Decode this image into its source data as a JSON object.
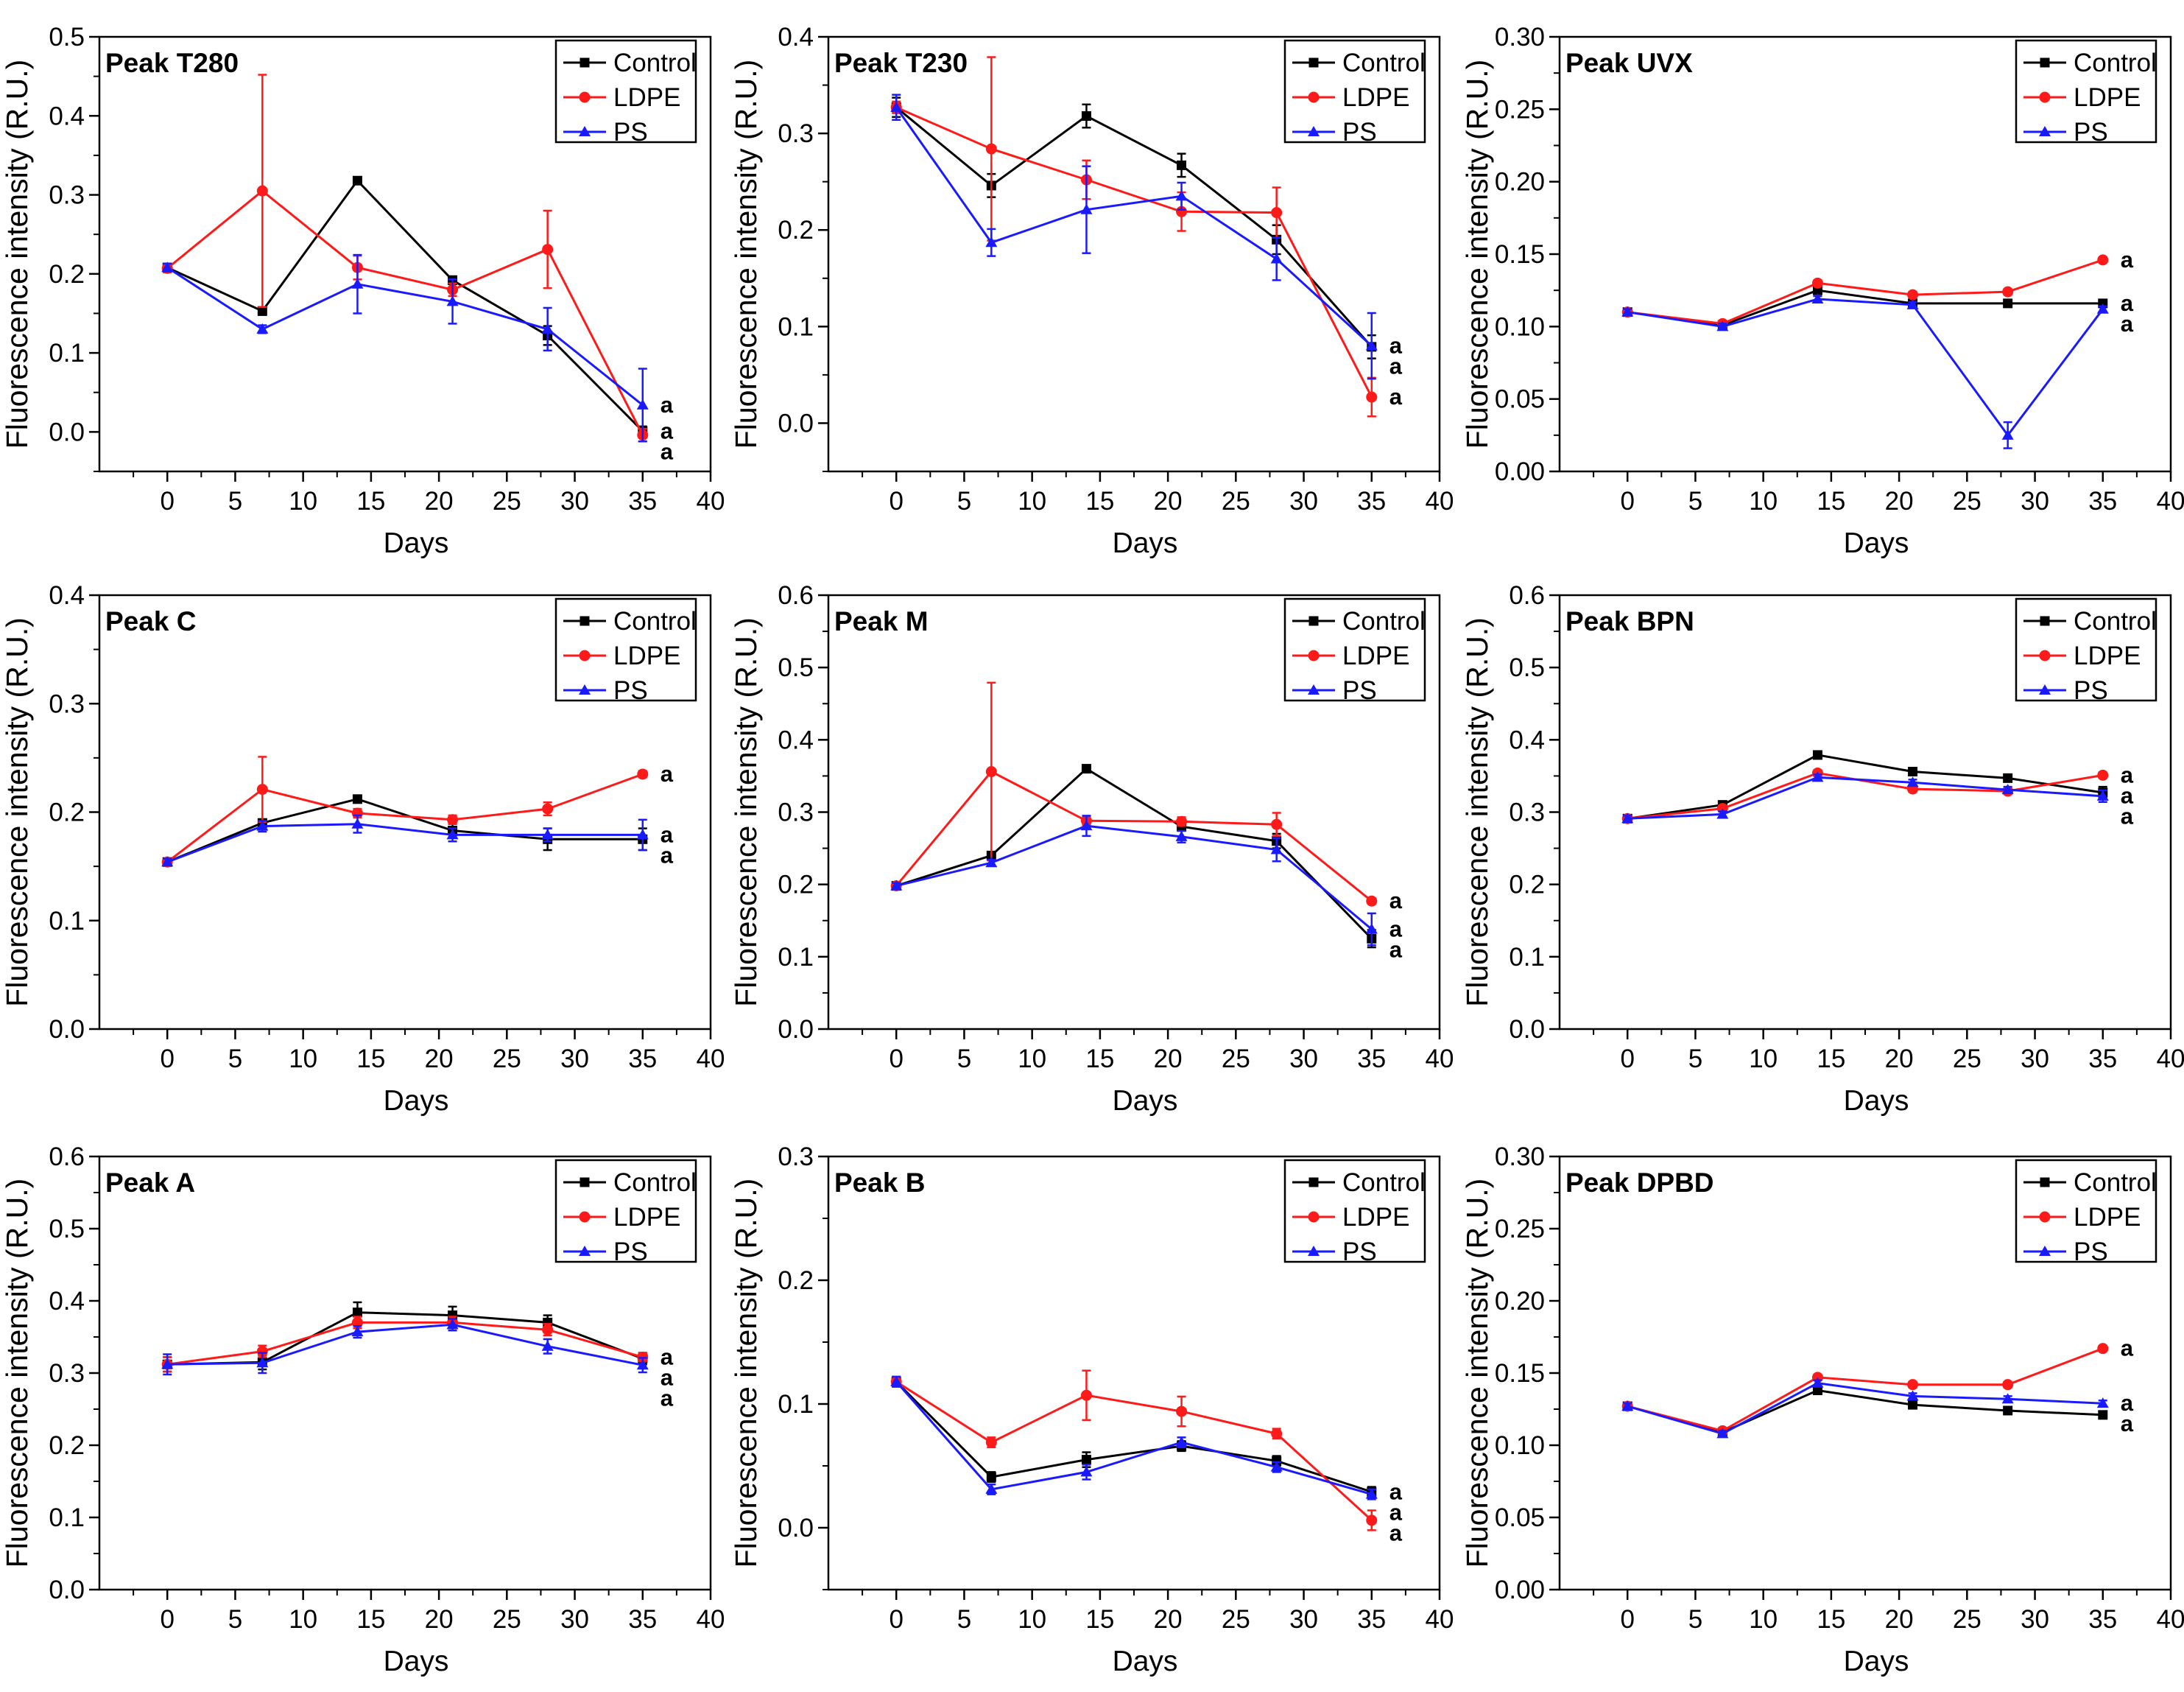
{
  "figure": {
    "xlabel": "Days",
    "ylabel": "Fluorescence intensity (R.U.)",
    "legend_labels": [
      "Control",
      "LDPE",
      "PS"
    ],
    "colors": {
      "Control": "#000000",
      "LDPE": "#ff1a1a",
      "PS": "#1a1aff"
    }
  },
  "chart_data": [
    {
      "type": "line",
      "title": "Peak T280",
      "xlabel": "Days",
      "ylabel": "Fluorescence intensity (R.U.)",
      "x": [
        0,
        7,
        14,
        21,
        28,
        35
      ],
      "xlim": [
        -5,
        40
      ],
      "xticks": [
        0,
        5,
        10,
        15,
        20,
        25,
        30,
        35,
        40
      ],
      "ylim": [
        -0.05,
        0.5
      ],
      "yticks": [
        "0.0",
        "0.1",
        "0.2",
        "0.3",
        "0.4",
        "0.5"
      ],
      "legend": "top-right",
      "series": [
        {
          "name": "Control",
          "values": [
            0.208,
            0.153,
            0.318,
            0.192,
            0.122,
            0.001
          ],
          "errors": [
            0.005,
            0.005,
            0.004,
            0.005,
            0.012,
            0.006
          ]
        },
        {
          "name": "LDPE",
          "values": [
            0.207,
            0.305,
            0.208,
            0.18,
            0.231,
            -0.004
          ],
          "errors": [
            0.005,
            0.147,
            0.015,
            0.008,
            0.049,
            0.008
          ]
        },
        {
          "name": "PS",
          "values": [
            0.208,
            0.13,
            0.187,
            0.165,
            0.13,
            0.034
          ],
          "errors": [
            0.005,
            0.005,
            0.037,
            0.028,
            0.027,
            0.046
          ]
        }
      ],
      "annotations": [
        "a",
        "a",
        "a"
      ]
    },
    {
      "type": "line",
      "title": "Peak T230",
      "xlabel": "Days",
      "ylabel": "Fluorescence intensity (R.U.)",
      "x": [
        0,
        7,
        14,
        21,
        28,
        35
      ],
      "xlim": [
        -5,
        40
      ],
      "xticks": [
        0,
        5,
        10,
        15,
        20,
        25,
        30,
        35,
        40
      ],
      "ylim": [
        -0.05,
        0.4
      ],
      "yticks": [
        "0.0",
        "0.1",
        "0.2",
        "0.3",
        "0.4"
      ],
      "legend": "top-right",
      "series": [
        {
          "name": "Control",
          "values": [
            0.327,
            0.246,
            0.318,
            0.267,
            0.19,
            0.079
          ],
          "errors": [
            0.01,
            0.012,
            0.012,
            0.012,
            0.015,
            0.012
          ]
        },
        {
          "name": "LDPE",
          "values": [
            0.327,
            0.284,
            0.252,
            0.219,
            0.218,
            0.027
          ],
          "errors": [
            0.006,
            0.095,
            0.02,
            0.02,
            0.026,
            0.02
          ]
        },
        {
          "name": "PS",
          "values": [
            0.327,
            0.187,
            0.221,
            0.235,
            0.17,
            0.08
          ],
          "errors": [
            0.013,
            0.014,
            0.045,
            0.014,
            0.022,
            0.034
          ]
        }
      ],
      "annotations": [
        "a",
        "a",
        "a"
      ]
    },
    {
      "type": "line",
      "title": "Peak UVX",
      "xlabel": "Days",
      "ylabel": "Fluorescence intensity (R.U.)",
      "x": [
        0,
        7,
        14,
        21,
        28,
        35
      ],
      "xlim": [
        -5,
        40
      ],
      "xticks": [
        0,
        5,
        10,
        15,
        20,
        25,
        30,
        35,
        40
      ],
      "ylim": [
        0.0,
        0.3
      ],
      "yticks": [
        "0.00",
        "0.05",
        "0.10",
        "0.15",
        "0.20",
        "0.25",
        "0.30"
      ],
      "legend": "top-right",
      "series": [
        {
          "name": "Control",
          "values": [
            0.11,
            0.101,
            0.125,
            0.116,
            0.116,
            0.116
          ],
          "errors": [
            0.002,
            0.002,
            0.002,
            0.002,
            0.002,
            0.002
          ]
        },
        {
          "name": "LDPE",
          "values": [
            0.11,
            0.102,
            0.13,
            0.122,
            0.124,
            0.146
          ],
          "errors": [
            0.002,
            0.002,
            0.002,
            0.002,
            0.002,
            0.002
          ]
        },
        {
          "name": "PS",
          "values": [
            0.11,
            0.1,
            0.119,
            0.115,
            0.025,
            0.112
          ],
          "errors": [
            0.002,
            0.002,
            0.002,
            0.002,
            0.009,
            0.002
          ]
        }
      ],
      "annotations": [
        "a",
        "a",
        "a"
      ]
    },
    {
      "type": "line",
      "title": "Peak C",
      "xlabel": "Days",
      "ylabel": "Fluorescence intensity (R.U.)",
      "x": [
        0,
        7,
        14,
        21,
        28,
        35
      ],
      "xlim": [
        -5,
        40
      ],
      "xticks": [
        0,
        5,
        10,
        15,
        20,
        25,
        30,
        35,
        40
      ],
      "ylim": [
        0.0,
        0.4
      ],
      "yticks": [
        "0.0",
        "0.1",
        "0.2",
        "0.3",
        "0.4"
      ],
      "legend": "top-right",
      "series": [
        {
          "name": "Control",
          "values": [
            0.154,
            0.19,
            0.212,
            0.183,
            0.175,
            0.175
          ],
          "errors": [
            0.003,
            0.003,
            0.003,
            0.006,
            0.01,
            0.01
          ]
        },
        {
          "name": "LDPE",
          "values": [
            0.154,
            0.221,
            0.199,
            0.193,
            0.203,
            0.235
          ],
          "errors": [
            0.003,
            0.03,
            0.004,
            0.004,
            0.006,
            0.003
          ]
        },
        {
          "name": "PS",
          "values": [
            0.154,
            0.187,
            0.189,
            0.179,
            0.179,
            0.179
          ],
          "errors": [
            0.003,
            0.005,
            0.008,
            0.006,
            0.006,
            0.014
          ]
        }
      ],
      "annotations": [
        "a",
        "a",
        "a"
      ]
    },
    {
      "type": "line",
      "title": "Peak M",
      "xlabel": "Days",
      "ylabel": "Fluorescence intensity (R.U.)",
      "x": [
        0,
        7,
        14,
        21,
        28,
        35
      ],
      "xlim": [
        -5,
        40
      ],
      "xticks": [
        0,
        5,
        10,
        15,
        20,
        25,
        30,
        35,
        40
      ],
      "ylim": [
        0.0,
        0.6
      ],
      "yticks": [
        "0.0",
        "0.1",
        "0.2",
        "0.3",
        "0.4",
        "0.5",
        "0.6"
      ],
      "legend": "top-right",
      "series": [
        {
          "name": "Control",
          "values": [
            0.198,
            0.24,
            0.36,
            0.28,
            0.26,
            0.125
          ],
          "errors": [
            0.004,
            0.004,
            0.004,
            0.004,
            0.01,
            0.012
          ]
        },
        {
          "name": "LDPE",
          "values": [
            0.198,
            0.356,
            0.288,
            0.287,
            0.283,
            0.177
          ],
          "errors": [
            0.004,
            0.123,
            0.006,
            0.006,
            0.016,
            0.004
          ]
        },
        {
          "name": "PS",
          "values": [
            0.198,
            0.23,
            0.281,
            0.266,
            0.248,
            0.138
          ],
          "errors": [
            0.004,
            0.004,
            0.014,
            0.008,
            0.016,
            0.022
          ]
        }
      ],
      "annotations": [
        "a",
        "a",
        "a"
      ]
    },
    {
      "type": "line",
      "title": "Peak BPN",
      "xlabel": "Days",
      "ylabel": "Fluorescence intensity (R.U.)",
      "x": [
        0,
        7,
        14,
        21,
        28,
        35
      ],
      "xlim": [
        -5,
        40
      ],
      "xticks": [
        0,
        5,
        10,
        15,
        20,
        25,
        30,
        35,
        40
      ],
      "ylim": [
        0.0,
        0.6
      ],
      "yticks": [
        "0.0",
        "0.1",
        "0.2",
        "0.3",
        "0.4",
        "0.5",
        "0.6"
      ],
      "legend": "top-right",
      "series": [
        {
          "name": "Control",
          "values": [
            0.291,
            0.31,
            0.379,
            0.356,
            0.347,
            0.327
          ],
          "errors": [
            0.004,
            0.004,
            0.004,
            0.004,
            0.004,
            0.008
          ]
        },
        {
          "name": "LDPE",
          "values": [
            0.291,
            0.305,
            0.354,
            0.332,
            0.329,
            0.351
          ],
          "errors": [
            0.004,
            0.004,
            0.004,
            0.004,
            0.004,
            0.004
          ]
        },
        {
          "name": "PS",
          "values": [
            0.291,
            0.297,
            0.348,
            0.341,
            0.331,
            0.322
          ],
          "errors": [
            0.004,
            0.004,
            0.004,
            0.004,
            0.004,
            0.008
          ]
        }
      ],
      "annotations": [
        "a",
        "a",
        "a"
      ]
    },
    {
      "type": "line",
      "title": "Peak A",
      "xlabel": "Days",
      "ylabel": "Fluorescence intensity (R.U.)",
      "x": [
        0,
        7,
        14,
        21,
        28,
        35
      ],
      "xlim": [
        -5,
        40
      ],
      "xticks": [
        0,
        5,
        10,
        15,
        20,
        25,
        30,
        35,
        40
      ],
      "ylim": [
        0.0,
        0.6
      ],
      "yticks": [
        "0.0",
        "0.1",
        "0.2",
        "0.3",
        "0.4",
        "0.5",
        "0.6"
      ],
      "legend": "top-right",
      "series": [
        {
          "name": "Control",
          "values": [
            0.312,
            0.315,
            0.384,
            0.38,
            0.37,
            0.32
          ],
          "errors": [
            0.01,
            0.01,
            0.014,
            0.012,
            0.01,
            0.008
          ]
        },
        {
          "name": "LDPE",
          "values": [
            0.312,
            0.33,
            0.37,
            0.37,
            0.36,
            0.322
          ],
          "errors": [
            0.01,
            0.008,
            0.008,
            0.008,
            0.008,
            0.006
          ]
        },
        {
          "name": "PS",
          "values": [
            0.312,
            0.314,
            0.357,
            0.367,
            0.337,
            0.311
          ],
          "errors": [
            0.014,
            0.014,
            0.008,
            0.008,
            0.01,
            0.01
          ]
        }
      ],
      "annotations": [
        "a",
        "a",
        "a"
      ]
    },
    {
      "type": "line",
      "title": "Peak B",
      "xlabel": "Days",
      "ylabel": "Fluorescence intensity (R.U.)",
      "x": [
        0,
        7,
        14,
        21,
        28,
        35
      ],
      "xlim": [
        -5,
        40
      ],
      "xticks": [
        0,
        5,
        10,
        15,
        20,
        25,
        30,
        35,
        40
      ],
      "ylim": [
        -0.05,
        0.3
      ],
      "yticks": [
        "0.0",
        "0.1",
        "0.2",
        "0.3"
      ],
      "legend": "top-right",
      "series": [
        {
          "name": "Control",
          "values": [
            0.118,
            0.041,
            0.055,
            0.066,
            0.054,
            0.029
          ],
          "errors": [
            0.004,
            0.004,
            0.006,
            0.004,
            0.004,
            0.004
          ]
        },
        {
          "name": "LDPE",
          "values": [
            0.118,
            0.069,
            0.107,
            0.094,
            0.076,
            0.006
          ],
          "errors": [
            0.004,
            0.004,
            0.02,
            0.012,
            0.004,
            0.008
          ]
        },
        {
          "name": "PS",
          "values": [
            0.118,
            0.031,
            0.045,
            0.069,
            0.049,
            0.027
          ],
          "errors": [
            0.004,
            0.004,
            0.006,
            0.004,
            0.004,
            0.004
          ]
        }
      ],
      "annotations": [
        "a",
        "a",
        "a"
      ]
    },
    {
      "type": "line",
      "title": "Peak DPBD",
      "xlabel": "Days",
      "ylabel": "Fluorescence intensity (R.U.)",
      "x": [
        0,
        7,
        14,
        21,
        28,
        35
      ],
      "xlim": [
        -5,
        40
      ],
      "xticks": [
        0,
        5,
        10,
        15,
        20,
        25,
        30,
        35,
        40
      ],
      "ylim": [
        0.0,
        0.3
      ],
      "yticks": [
        "0.00",
        "0.05",
        "0.10",
        "0.15",
        "0.20",
        "0.25",
        "0.30"
      ],
      "legend": "top-right",
      "series": [
        {
          "name": "Control",
          "values": [
            0.127,
            0.109,
            0.138,
            0.128,
            0.124,
            0.121
          ],
          "errors": [
            0.002,
            0.002,
            0.002,
            0.002,
            0.002,
            0.002
          ]
        },
        {
          "name": "LDPE",
          "values": [
            0.127,
            0.11,
            0.147,
            0.142,
            0.142,
            0.167
          ],
          "errors": [
            0.002,
            0.002,
            0.002,
            0.002,
            0.002,
            0.002
          ]
        },
        {
          "name": "PS",
          "values": [
            0.127,
            0.108,
            0.143,
            0.134,
            0.132,
            0.129
          ],
          "errors": [
            0.002,
            0.002,
            0.002,
            0.002,
            0.002,
            0.002
          ]
        }
      ],
      "annotations": [
        "a",
        "a",
        "a"
      ]
    }
  ]
}
